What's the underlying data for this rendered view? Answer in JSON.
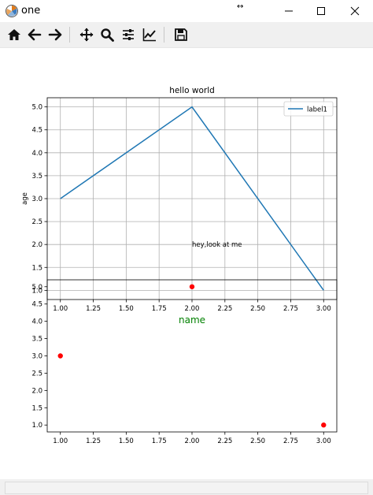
{
  "window": {
    "title": "one",
    "app_icon": "matplotlib-figure-icon",
    "controls": [
      "minimize-icon",
      "maximize-icon",
      "close-icon"
    ]
  },
  "toolbar": {
    "buttons": [
      {
        "name": "home",
        "icon": "home-icon"
      },
      {
        "name": "back",
        "icon": "arrow-left-icon"
      },
      {
        "name": "forward",
        "icon": "arrow-right-icon"
      },
      {
        "name": "pan",
        "icon": "move-icon"
      },
      {
        "name": "zoom",
        "icon": "zoom-icon"
      },
      {
        "name": "subplots",
        "icon": "sliders-icon"
      },
      {
        "name": "customize",
        "icon": "line-chart-icon"
      },
      {
        "name": "save",
        "icon": "floppy-disk-icon"
      }
    ]
  },
  "chart_data": [
    {
      "type": "line",
      "title": "hello world",
      "xlabel": "name",
      "xlabel_color": "#008000",
      "ylabel": "age",
      "x": [
        1.0,
        2.0,
        3.0
      ],
      "series": [
        {
          "name": "label1",
          "values": [
            3.0,
            5.0,
            1.0
          ],
          "color": "#1f77b4"
        }
      ],
      "xlim": [
        0.9,
        3.1
      ],
      "ylim": [
        0.8,
        5.2
      ],
      "xticks": [
        "1.00",
        "1.25",
        "1.50",
        "1.75",
        "2.00",
        "2.25",
        "2.50",
        "2.75",
        "3.00"
      ],
      "yticks": [
        "1.0",
        "1.5",
        "2.0",
        "2.5",
        "3.0",
        "3.5",
        "4.0",
        "4.5",
        "5.0"
      ],
      "grid": true,
      "legend": "upper right",
      "annotations": [
        {
          "text": "hey,look at me",
          "x": 2.0,
          "y": 2.0
        }
      ]
    },
    {
      "type": "scatter",
      "x": [
        1.0,
        2.0,
        3.0
      ],
      "series": [
        {
          "values": [
            3.0,
            5.0,
            1.0
          ],
          "color": "#ff0000"
        }
      ],
      "xlim": [
        0.9,
        3.1
      ],
      "ylim": [
        0.8,
        5.2
      ],
      "xticks": [
        "1.00",
        "1.25",
        "1.50",
        "1.75",
        "2.00",
        "2.25",
        "2.50",
        "2.75",
        "3.00"
      ],
      "yticks": [
        "1.0",
        "1.5",
        "2.0",
        "2.5",
        "3.0",
        "3.5",
        "4.0",
        "4.5",
        "5.0"
      ],
      "grid": false
    }
  ]
}
